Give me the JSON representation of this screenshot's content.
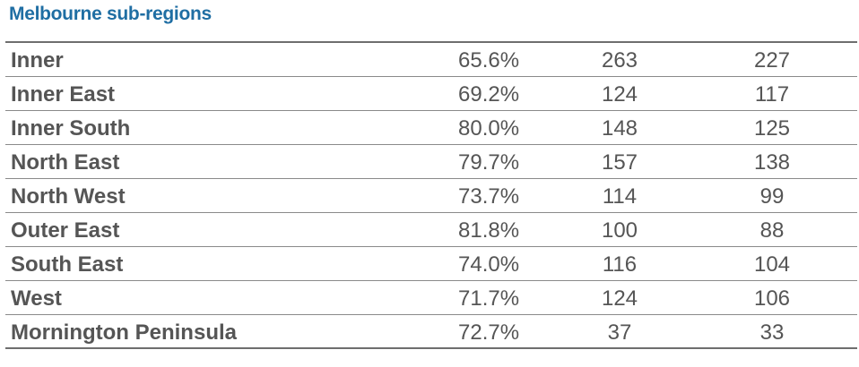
{
  "heading": "Melbourne sub-regions",
  "rows": [
    {
      "name": "Inner",
      "pct": "65.6%",
      "col2": "263",
      "col3": "227"
    },
    {
      "name": "Inner East",
      "pct": "69.2%",
      "col2": "124",
      "col3": "117"
    },
    {
      "name": "Inner South",
      "pct": "80.0%",
      "col2": "148",
      "col3": "125"
    },
    {
      "name": "North East",
      "pct": "79.7%",
      "col2": "157",
      "col3": "138"
    },
    {
      "name": "North West",
      "pct": "73.7%",
      "col2": "114",
      "col3": "99"
    },
    {
      "name": "Outer East",
      "pct": "81.8%",
      "col2": "100",
      "col3": "88"
    },
    {
      "name": "South East",
      "pct": "74.0%",
      "col2": "116",
      "col3": "104"
    },
    {
      "name": "West",
      "pct": "71.7%",
      "col2": "124",
      "col3": "106"
    },
    {
      "name": "Mornington Peninsula",
      "pct": "72.7%",
      "col2": "37",
      "col3": "33"
    }
  ],
  "colors": {
    "heading": "#1f6ea3",
    "text": "#555555",
    "rule": "#6e6e6e"
  }
}
